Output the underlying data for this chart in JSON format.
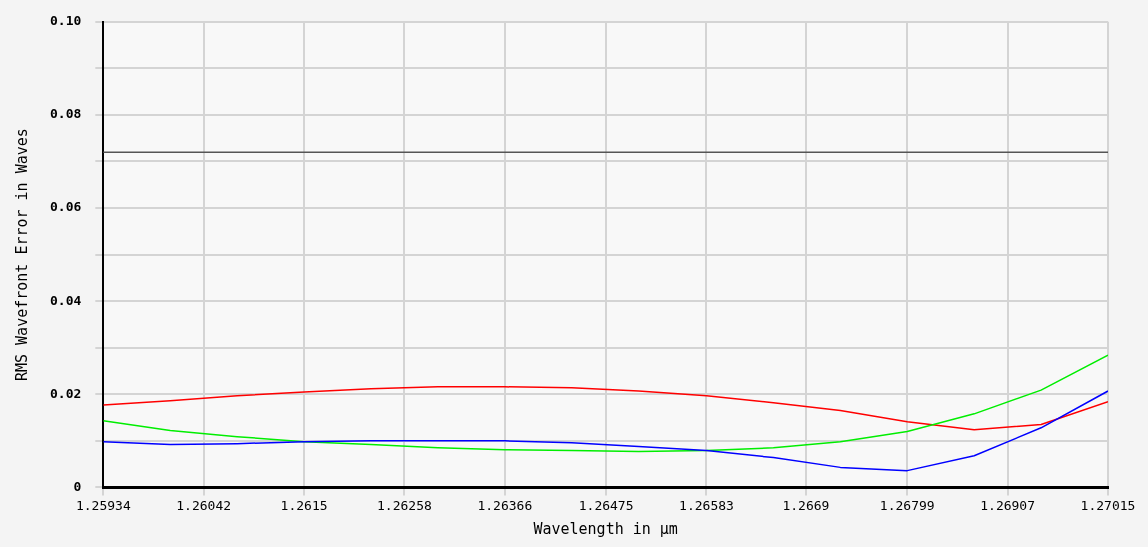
{
  "chart_data": {
    "type": "line",
    "xlabel": "Wavelength in µm",
    "ylabel": "RMS Wavefront Error in Waves",
    "x": [
      1.25934,
      1.26006,
      1.26078,
      1.2615,
      1.26222,
      1.26294,
      1.26366,
      1.26438,
      1.2651,
      1.26583,
      1.26655,
      1.26727,
      1.26799,
      1.26871,
      1.26943,
      1.27015
    ],
    "series": [
      {
        "color": "#ff0000",
        "values": [
          0.0177,
          0.0186,
          0.0197,
          0.0205,
          0.0212,
          0.0216,
          0.0216,
          0.0214,
          0.0207,
          0.0197,
          0.0182,
          0.0165,
          0.0141,
          0.0124,
          0.0135,
          0.0184
        ]
      },
      {
        "color": "#00ee00",
        "values": [
          0.0143,
          0.0122,
          0.0109,
          0.0098,
          0.0092,
          0.0085,
          0.0081,
          0.0079,
          0.0077,
          0.0079,
          0.0085,
          0.0098,
          0.012,
          0.0158,
          0.0209,
          0.0284
        ]
      },
      {
        "color": "#0000ff",
        "values": [
          0.0098,
          0.0092,
          0.0094,
          0.0098,
          0.01,
          0.01,
          0.01,
          0.0096,
          0.0088,
          0.0079,
          0.0064,
          0.0043,
          0.0036,
          0.0068,
          0.0128,
          0.0207
        ]
      }
    ],
    "xlim": [
      1.25934,
      1.27015
    ],
    "xticks": [
      1.25934,
      1.26042,
      1.2615,
      1.26258,
      1.26366,
      1.26475,
      1.26583,
      1.2669,
      1.26799,
      1.26907,
      1.27015
    ],
    "ylim": [
      0,
      0.1
    ],
    "yticks": [
      0,
      {
        "value": 0.01,
        "label": null
      },
      0.02,
      {
        "value": 0.03,
        "label": null
      },
      0.04,
      {
        "value": 0.05,
        "label": null
      },
      0.06,
      {
        "value": 0.07,
        "label": null
      },
      0.08,
      {
        "value": 0.09,
        "label": null
      },
      {
        "value": 0.1,
        "label": "0.10"
      }
    ],
    "ref_lines": [
      {
        "axis": "y",
        "value": 0.072,
        "color": "#555555"
      }
    ],
    "grid": true,
    "legend": false,
    "marker": "none",
    "line_style": "solid"
  }
}
